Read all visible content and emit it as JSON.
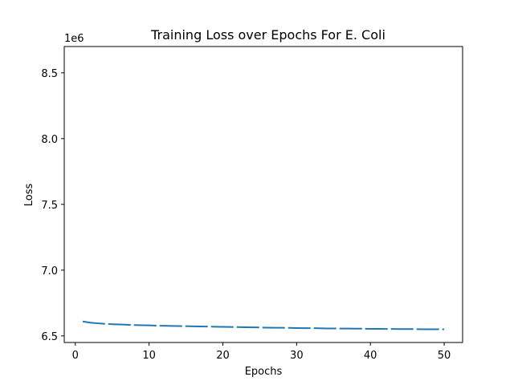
{
  "chart_data": {
    "type": "line",
    "title": "Training Loss over Epochs For E. Coli",
    "xlabel": "Epochs",
    "ylabel": "Loss",
    "y_offset_label": "1e6",
    "xlim": [
      -1.5,
      52.5
    ],
    "ylim": [
      6.45,
      8.7
    ],
    "x_ticks": [
      0,
      10,
      20,
      30,
      40,
      50
    ],
    "x_tick_labels": [
      "0",
      "10",
      "20",
      "30",
      "40",
      "50"
    ],
    "y_ticks": [
      6.5,
      7.0,
      7.5,
      8.0,
      8.5
    ],
    "y_tick_labels": [
      "6.5",
      "7.0",
      "7.5",
      "8.0",
      "8.5"
    ],
    "grid": false,
    "line_style": "dashed",
    "series": [
      {
        "color": "#1f77b4",
        "x": [
          1,
          2,
          3,
          4,
          5,
          6,
          7,
          8,
          9,
          10,
          11,
          12,
          13,
          14,
          15,
          16,
          17,
          18,
          19,
          20,
          21,
          22,
          23,
          24,
          25,
          26,
          27,
          28,
          29,
          30,
          31,
          32,
          33,
          34,
          35,
          36,
          37,
          38,
          39,
          40,
          41,
          42,
          43,
          44,
          45,
          46,
          47,
          48,
          49,
          50
        ],
        "y": [
          6.61,
          6.601,
          6.596,
          6.592,
          6.589,
          6.587,
          6.585,
          6.583,
          6.581,
          6.58,
          6.578,
          6.577,
          6.576,
          6.575,
          6.574,
          6.573,
          6.572,
          6.571,
          6.57,
          6.569,
          6.568,
          6.567,
          6.566,
          6.565,
          6.564,
          6.563,
          6.562,
          6.562,
          6.561,
          6.56,
          6.559,
          6.559,
          6.558,
          6.557,
          6.557,
          6.556,
          6.556,
          6.555,
          6.555,
          6.554,
          6.554,
          6.553,
          6.553,
          6.552,
          6.552,
          6.552,
          6.551,
          6.551,
          6.551,
          6.55
        ]
      }
    ]
  }
}
